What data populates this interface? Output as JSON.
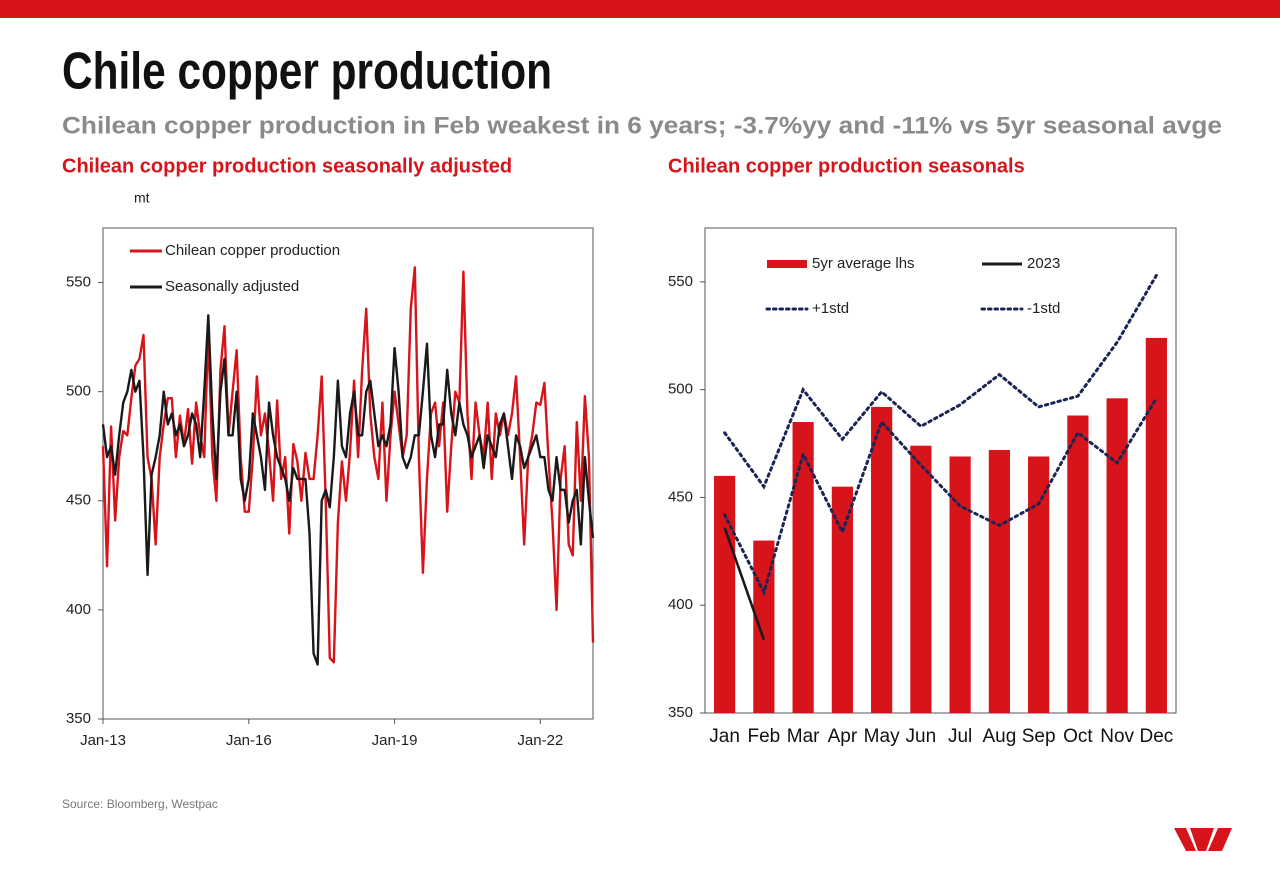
{
  "title": "Chile copper production",
  "subtitle": "Chilean copper production in Feb weakest in 6 years; -3.7%yy and -11% vs 5yr seasonal avge",
  "source": "Source:  Bloomberg,  Westpac",
  "chart_data": [
    {
      "type": "line",
      "title": "Chilean copper production seasonally adjusted",
      "y_label": "mt",
      "x": [
        "Jan-13",
        "Feb-13",
        "Mar-13",
        "Apr-13",
        "May-13",
        "Jun-13",
        "Jul-13",
        "Aug-13",
        "Sep-13",
        "Oct-13",
        "Nov-13",
        "Dec-13",
        "Jan-14",
        "Feb-14",
        "Mar-14",
        "Apr-14",
        "May-14",
        "Jun-14",
        "Jul-14",
        "Aug-14",
        "Sep-14",
        "Oct-14",
        "Nov-14",
        "Dec-14",
        "Jan-15",
        "Feb-15",
        "Mar-15",
        "Apr-15",
        "May-15",
        "Jun-15",
        "Jul-15",
        "Aug-15",
        "Sep-15",
        "Oct-15",
        "Nov-15",
        "Dec-15",
        "Jan-16",
        "Feb-16",
        "Mar-16",
        "Apr-16",
        "May-16",
        "Jun-16",
        "Jul-16",
        "Aug-16",
        "Sep-16",
        "Oct-16",
        "Nov-16",
        "Dec-16",
        "Jan-17",
        "Feb-17",
        "Mar-17",
        "Apr-17",
        "May-17",
        "Jun-17",
        "Jul-17",
        "Aug-17",
        "Sep-17",
        "Oct-17",
        "Nov-17",
        "Dec-17",
        "Jan-18",
        "Feb-18",
        "Mar-18",
        "Apr-18",
        "May-18",
        "Jun-18",
        "Jul-18",
        "Aug-18",
        "Sep-18",
        "Oct-18",
        "Nov-18",
        "Dec-18",
        "Jan-19",
        "Feb-19",
        "Mar-19",
        "Apr-19",
        "May-19",
        "Jun-19",
        "Jul-19",
        "Aug-19",
        "Sep-19",
        "Oct-19",
        "Nov-19",
        "Dec-19",
        "Jan-20",
        "Feb-20",
        "Mar-20",
        "Apr-20",
        "May-20",
        "Jun-20",
        "Jul-20",
        "Aug-20",
        "Sep-20",
        "Oct-20",
        "Nov-20",
        "Dec-20",
        "Jan-21",
        "Feb-21",
        "Mar-21",
        "Apr-21",
        "May-21",
        "Jun-21",
        "Jul-21",
        "Aug-21",
        "Sep-21",
        "Oct-21",
        "Nov-21",
        "Dec-21",
        "Jan-22",
        "Feb-22",
        "Mar-22",
        "Apr-22",
        "May-22",
        "Jun-22",
        "Jul-22",
        "Aug-22",
        "Sep-22",
        "Oct-22",
        "Nov-22",
        "Dec-22",
        "Jan-23",
        "Feb-23"
      ],
      "series": [
        {
          "name": "Chilean copper production",
          "color": "#d7141a",
          "values": [
            475,
            420,
            484,
            441,
            470,
            482,
            480,
            497,
            512,
            515,
            526,
            470,
            460,
            430,
            470,
            485,
            497,
            497,
            470,
            489,
            476,
            492,
            467,
            495,
            480,
            470,
            528,
            470,
            450,
            510,
            530,
            480,
            500,
            519,
            470,
            445,
            445,
            470,
            507,
            480,
            490,
            472,
            450,
            496,
            460,
            470,
            435,
            476,
            468,
            450,
            472,
            460,
            460,
            480,
            507,
            450,
            378,
            376,
            440,
            468,
            450,
            472,
            505,
            470,
            510,
            538,
            490,
            470,
            460,
            495,
            450,
            480,
            500,
            485,
            470,
            480,
            538,
            557,
            470,
            417,
            460,
            490,
            495,
            475,
            495,
            445,
            475,
            500,
            495,
            555,
            490,
            460,
            495,
            480,
            470,
            495,
            460,
            490,
            480,
            490,
            480,
            490,
            507,
            470,
            430,
            470,
            480,
            495,
            494,
            504,
            470,
            440,
            400,
            460,
            475,
            430,
            425,
            486,
            450,
            498,
            470,
            385
          ]
        },
        {
          "name": "Seasonally adjusted",
          "color": "#1a1a1a",
          "values": [
            485,
            470,
            475,
            462,
            480,
            495,
            500,
            510,
            500,
            505,
            470,
            416,
            462,
            470,
            480,
            500,
            485,
            490,
            480,
            485,
            475,
            480,
            490,
            485,
            470,
            500,
            535,
            490,
            460,
            500,
            515,
            480,
            480,
            500,
            460,
            450,
            460,
            490,
            480,
            470,
            455,
            495,
            480,
            470,
            465,
            460,
            450,
            465,
            460,
            460,
            460,
            435,
            380,
            375,
            450,
            455,
            447,
            470,
            505,
            475,
            470,
            490,
            500,
            480,
            480,
            500,
            505,
            490,
            475,
            480,
            475,
            485,
            520,
            500,
            470,
            465,
            470,
            480,
            480,
            500,
            522,
            480,
            470,
            485,
            485,
            510,
            490,
            480,
            495,
            485,
            480,
            470,
            475,
            480,
            465,
            480,
            475,
            470,
            485,
            490,
            475,
            460,
            480,
            475,
            465,
            470,
            475,
            480,
            470,
            470,
            455,
            450,
            470,
            455,
            455,
            440,
            450,
            455,
            430,
            470,
            450,
            433
          ]
        }
      ],
      "xlim": [
        "Jan-13",
        "Feb-23"
      ],
      "xticks": [
        "Jan-13",
        "Jan-16",
        "Jan-19",
        "Jan-22"
      ],
      "ylim": [
        350,
        575
      ],
      "yticks": [
        350,
        400,
        450,
        500,
        550
      ],
      "legend": "upper left"
    },
    {
      "type": "bar",
      "title": "Chilean copper production seasonals",
      "categories": [
        "Jan",
        "Feb",
        "Mar",
        "Apr",
        "May",
        "Jun",
        "Jul",
        "Aug",
        "Sep",
        "Oct",
        "Nov",
        "Dec"
      ],
      "series": [
        {
          "name": "5yr average lhs",
          "type": "bar",
          "color": "#d7141a",
          "values": [
            460,
            430,
            485,
            455,
            492,
            474,
            469,
            472,
            469,
            488,
            496,
            524
          ]
        },
        {
          "name": "2023",
          "type": "line",
          "style": "solid",
          "color": "#1a1a1a",
          "values": [
            436,
            384,
            null,
            null,
            null,
            null,
            null,
            null,
            null,
            null,
            null,
            null
          ]
        },
        {
          "name": "+1std",
          "type": "line",
          "style": "dotted",
          "color": "#1c2454",
          "values": [
            480,
            455,
            500,
            477,
            499,
            483,
            493,
            507,
            492,
            497,
            522,
            553
          ]
        },
        {
          "name": "-1std",
          "type": "line",
          "style": "dotted",
          "color": "#1c2454",
          "values": [
            442,
            406,
            470,
            434,
            485,
            465,
            446,
            437,
            447,
            480,
            466,
            496
          ]
        }
      ],
      "ylim": [
        350,
        575
      ],
      "yticks": [
        350,
        400,
        450,
        500,
        550
      ],
      "legend": "upper center"
    }
  ]
}
